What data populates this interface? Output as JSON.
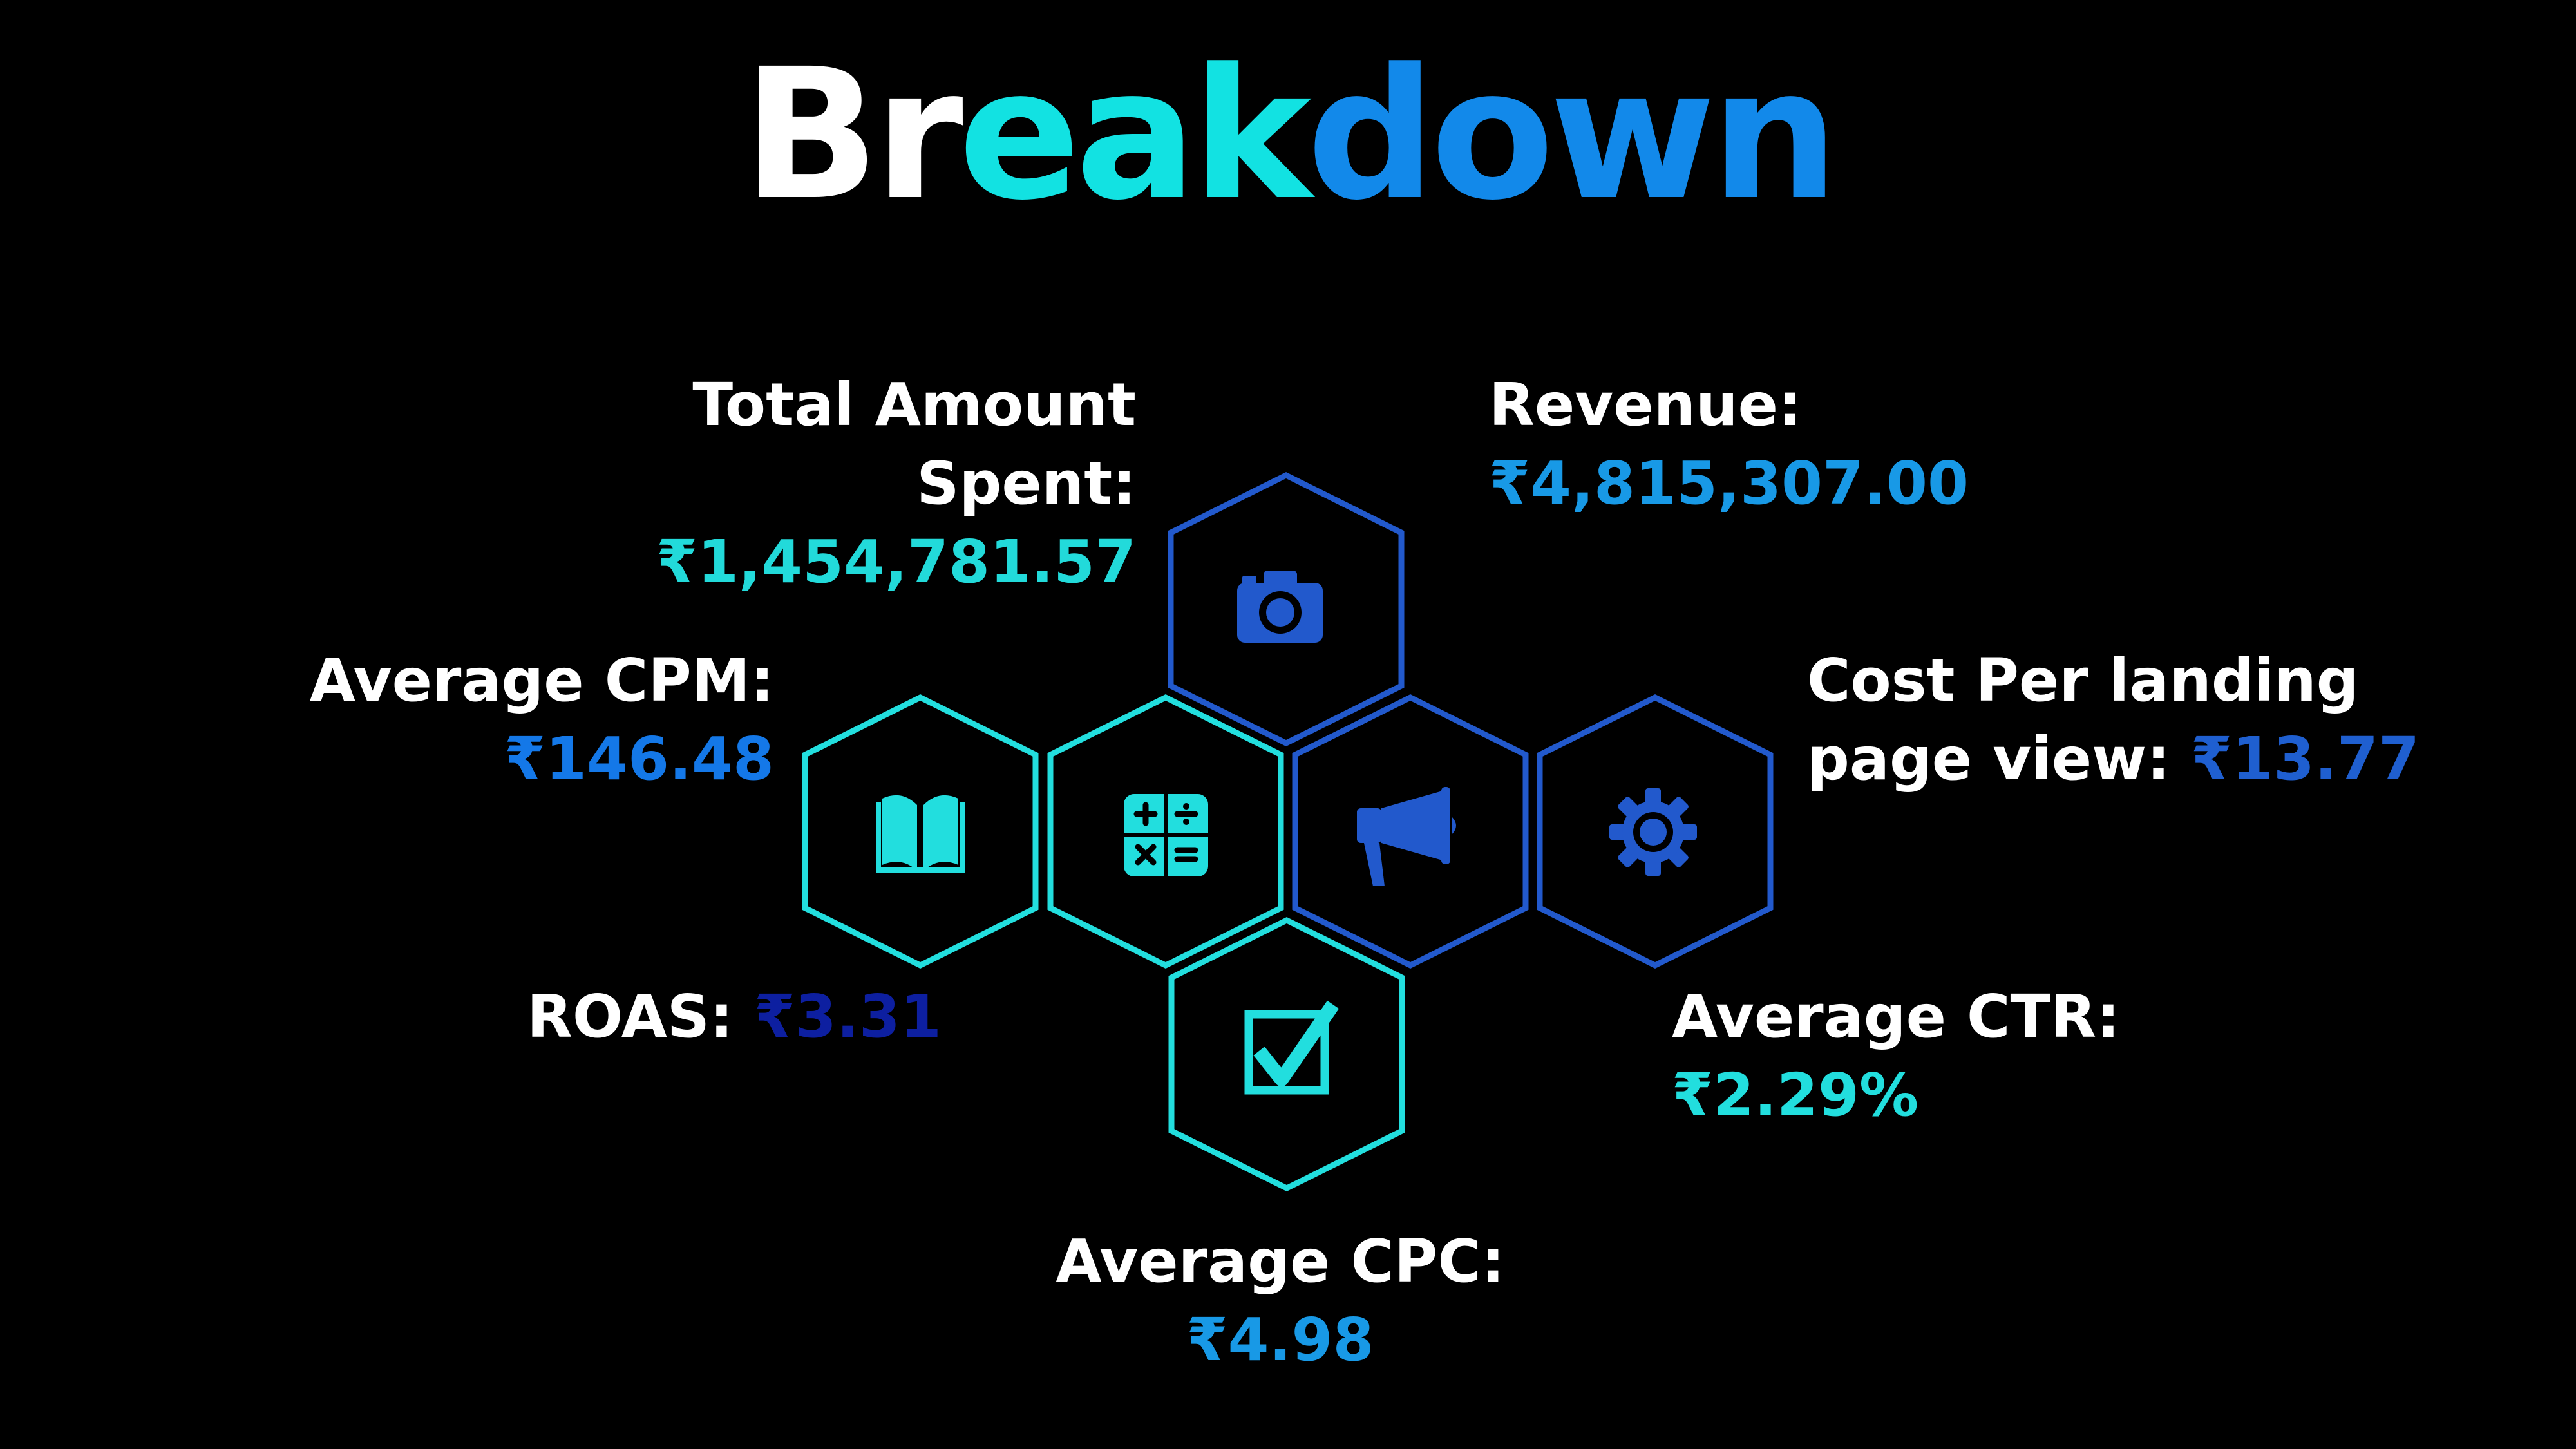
{
  "title": {
    "part1": "Br",
    "part2": "eak",
    "part3": "down",
    "colors": [
      "#ffffff",
      "#12e2e2",
      "#1289ea"
    ]
  },
  "metrics": {
    "total_spent": {
      "label_line1": "Total Amount",
      "label_line2": "Spent:",
      "value": "₹1,454,781.57",
      "color": "#22dada"
    },
    "revenue": {
      "label": "Revenue:",
      "value": "₹4,815,307.00",
      "color": "#1899e6"
    },
    "cpm": {
      "label": "Average CPM:",
      "value": "₹146.48",
      "color": "#1478e8"
    },
    "cost_landing": {
      "label_line1": "Cost Per landing",
      "label_line2": "page view:",
      "value": "₹13.77",
      "color": "#1f5fd0"
    },
    "roas": {
      "label": "ROAS:",
      "value": "₹3.31",
      "color": "#0d1fa0"
    },
    "ctr": {
      "label": "Average CTR:",
      "value": "₹2.29%",
      "color": "#22dede"
    },
    "cpc": {
      "label": "Average CPC:",
      "value": "₹4.98",
      "color": "#1899e6"
    }
  },
  "icons": [
    "camera-icon",
    "book-icon",
    "calculator-icon",
    "megaphone-icon",
    "gear-icon",
    "checkbox-icon"
  ],
  "colors": {
    "cyan": "#22dede",
    "blue": "#2259cc",
    "background": "#000000"
  }
}
